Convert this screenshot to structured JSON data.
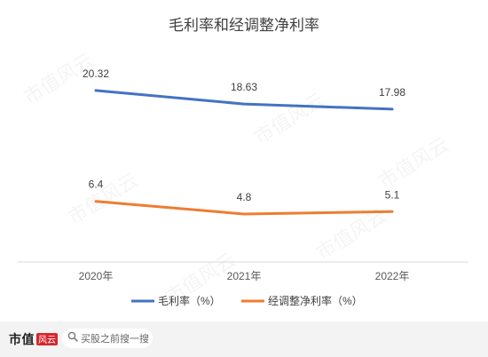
{
  "chart_data": {
    "type": "line",
    "title": "毛利率和经调整净利率",
    "categories": [
      "2020年",
      "2021年",
      "2022年"
    ],
    "series": [
      {
        "name": "毛利率（%）",
        "values": [
          20.32,
          18.63,
          17.98
        ],
        "color": "#4472C4"
      },
      {
        "name": "经调整净利率（%）",
        "values": [
          6.4,
          4.8,
          5.1
        ],
        "color": "#ED7D31"
      }
    ],
    "ylim": [
      0,
      25
    ],
    "grid": false,
    "legend_position": "bottom"
  },
  "watermark": {
    "text": "市值风云"
  },
  "footer": {
    "brand_text": "市值",
    "brand_logo_text": "风云",
    "search_icon": "search-icon",
    "search_label": "买股之前搜一搜"
  }
}
